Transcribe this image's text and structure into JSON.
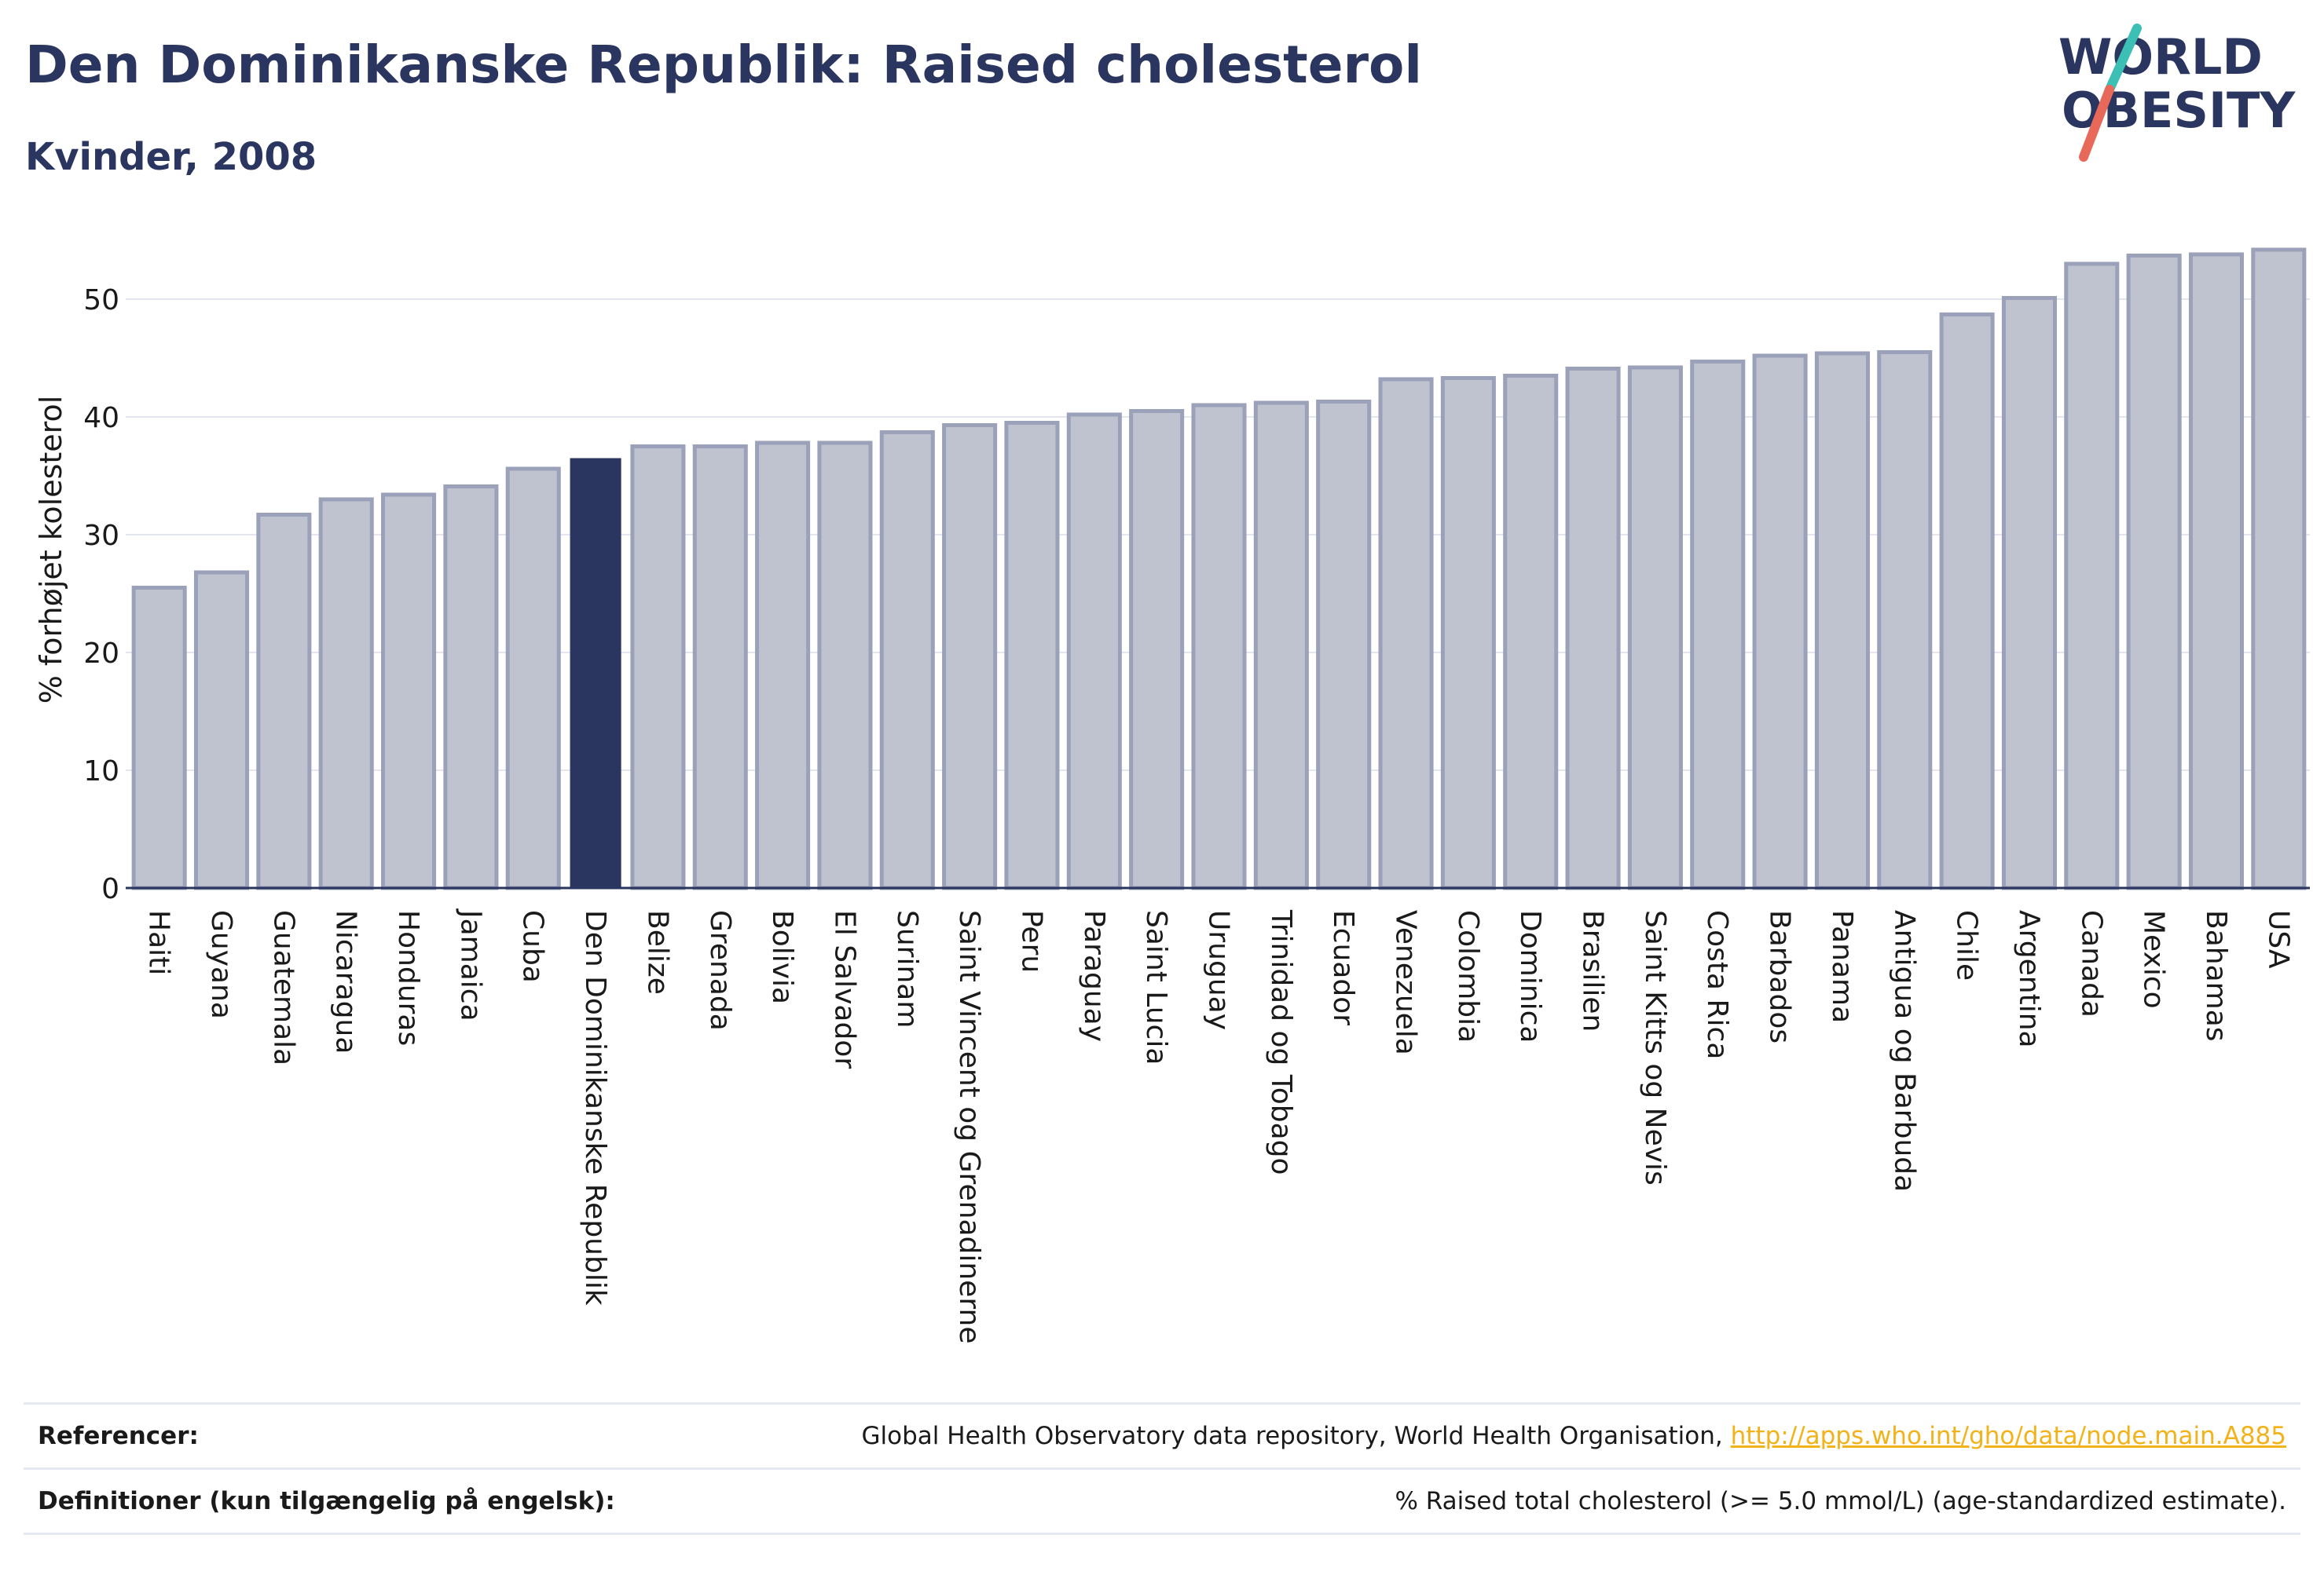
{
  "header": {
    "title": "Den Dominikanske Republik: Raised cholesterol",
    "subtitle": "Kvinder, 2008"
  },
  "logo": {
    "line1": "WORLD",
    "line2": "OBESITY",
    "colors": {
      "text": "#2a3560",
      "slash_top": "#3cbfb4",
      "slash_bottom": "#e8685a"
    }
  },
  "chart_data": {
    "type": "bar",
    "title": "Den Dominikanske Republik: Raised cholesterol",
    "subtitle": "Kvinder, 2008",
    "xlabel": "",
    "ylabel": "% forhøjet kolesterol",
    "ylim": [
      0,
      55
    ],
    "yticks": [
      0,
      10,
      20,
      30,
      40,
      50
    ],
    "grid": true,
    "highlight": "Den Dominikanske Republik",
    "colors": {
      "bar": "#bfc3cf",
      "bar_edge": "#9aa1b8",
      "highlight": "#2a3560",
      "grid": "#e3e6ee"
    },
    "categories": [
      "Haiti",
      "Guyana",
      "Guatemala",
      "Nicaragua",
      "Honduras",
      "Jamaica",
      "Cuba",
      "Den Dominikanske Republik",
      "Belize",
      "Grenada",
      "Bolivia",
      "El Salvador",
      "Surinam",
      "Saint Vincent og Grenadinerne",
      "Peru",
      "Paraguay",
      "Saint Lucia",
      "Uruguay",
      "Trinidad og Tobago",
      "Ecuador",
      "Venezuela",
      "Colombia",
      "Dominica",
      "Brasilien",
      "Saint Kitts og Nevis",
      "Costa Rica",
      "Barbados",
      "Panama",
      "Antigua og Barbuda",
      "Chile",
      "Argentina",
      "Canada",
      "Mexico",
      "Bahamas",
      "USA"
    ],
    "values": [
      25.5,
      26.8,
      31.7,
      33.0,
      33.4,
      34.1,
      35.6,
      36.5,
      37.5,
      37.5,
      37.8,
      37.8,
      38.7,
      39.3,
      39.5,
      40.2,
      40.5,
      41.0,
      41.2,
      41.3,
      43.2,
      43.3,
      43.5,
      44.1,
      44.2,
      44.7,
      45.2,
      45.4,
      45.5,
      48.7,
      50.1,
      53.0,
      53.7,
      53.8,
      54.2
    ]
  },
  "footer": {
    "references_label": "Referencer:",
    "references_text": "Global Health Observatory data repository, World Health Organisation, ",
    "references_link": "http://apps.who.int/gho/data/node.main.A885",
    "definitions_label": "Definitioner (kun tilgængelig på engelsk):",
    "definitions_text": "% Raised total cholesterol (>= 5.0 mmol/L) (age-standardized estimate)."
  }
}
